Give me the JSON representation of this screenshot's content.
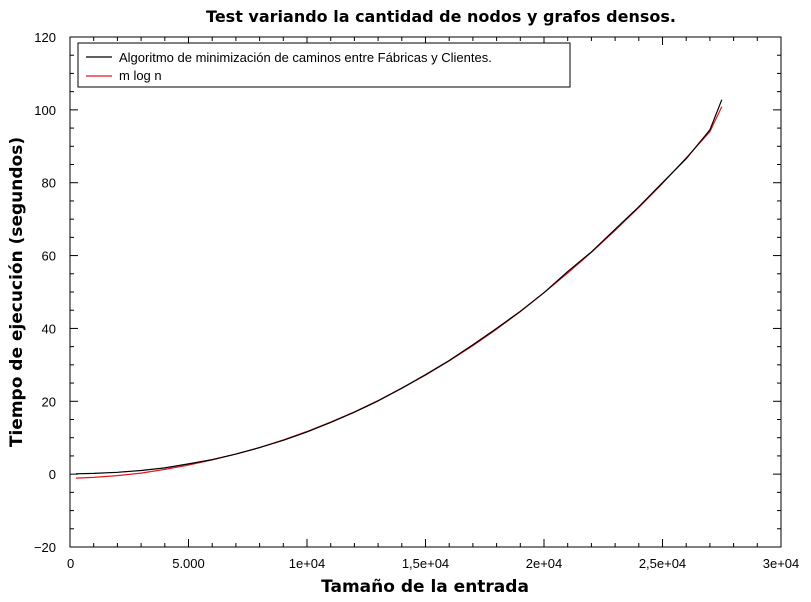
{
  "chart_data": {
    "type": "line",
    "title": "Test variando la cantidad de nodos y grafos densos.",
    "xlabel": "Tamaño de la entrada",
    "ylabel": "Tiempo de ejecución (segundos)",
    "xlim": [
      0,
      30000
    ],
    "ylim": [
      -20,
      120
    ],
    "x_ticks": [
      0,
      5000,
      10000,
      15000,
      20000,
      25000,
      30000
    ],
    "x_tick_labels": [
      "0",
      "5.000",
      "1e+04",
      "1,5e+04",
      "2e+04",
      "2,5e+04",
      "3e+04"
    ],
    "y_ticks": [
      -20,
      0,
      20,
      40,
      60,
      80,
      100,
      120
    ],
    "y_tick_labels": [
      "−20",
      "0",
      "20",
      "40",
      "60",
      "80",
      "100",
      "120"
    ],
    "grid": false,
    "legend_position": "top-left",
    "series": [
      {
        "name": "Algoritmo de minimización de caminos entre Fábricas y Clientes.",
        "color": "#000000",
        "x": [
          250,
          1000,
          2000,
          3000,
          4000,
          5000,
          6000,
          7000,
          8000,
          9000,
          10000,
          11000,
          12000,
          13000,
          14000,
          15000,
          16000,
          17000,
          18000,
          19000,
          20000,
          21000,
          22000,
          23000,
          24000,
          25000,
          26000,
          27000,
          27500
        ],
        "y": [
          0.1,
          0.2,
          0.5,
          1.0,
          1.7,
          2.8,
          4.0,
          5.5,
          7.3,
          9.3,
          11.6,
          14.2,
          17.0,
          20.1,
          23.6,
          27.3,
          31.2,
          35.5,
          40.0,
          44.7,
          49.8,
          55.6,
          61.0,
          67.2,
          73.4,
          80.0,
          86.6,
          94.5,
          102.8
        ]
      },
      {
        "name": "m log n",
        "color": "#e8141e",
        "x": [
          250,
          1000,
          2000,
          3000,
          4000,
          5000,
          6000,
          7000,
          8000,
          9000,
          10000,
          11000,
          12000,
          13000,
          14000,
          15000,
          16000,
          17000,
          18000,
          19000,
          20000,
          21000,
          22000,
          23000,
          24000,
          25000,
          26000,
          27000,
          27500
        ],
        "y": [
          -1.1,
          -0.9,
          -0.4,
          0.3,
          1.3,
          2.5,
          3.9,
          5.5,
          7.3,
          9.4,
          11.7,
          14.3,
          17.1,
          20.2,
          23.6,
          27.2,
          31.1,
          35.3,
          39.8,
          44.6,
          49.8,
          55.2,
          60.9,
          66.9,
          73.2,
          79.8,
          86.8,
          94.0,
          100.9
        ]
      }
    ]
  }
}
